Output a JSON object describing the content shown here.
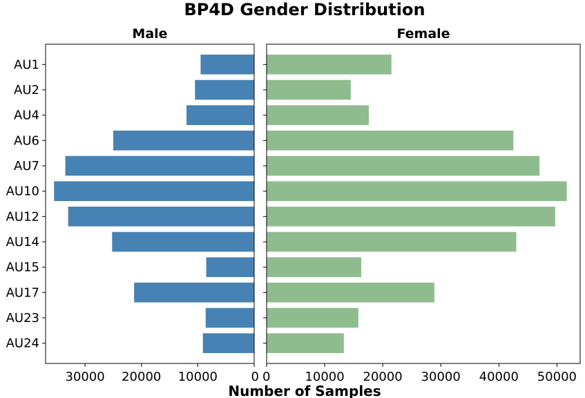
{
  "chart_data": {
    "type": "bar",
    "orientation": "horizontal",
    "title": "BP4D Gender Distribution",
    "xlabel": "Number of Samples",
    "categories": [
      "AU1",
      "AU2",
      "AU4",
      "AU6",
      "AU7",
      "AU10",
      "AU12",
      "AU14",
      "AU15",
      "AU17",
      "AU23",
      "AU24"
    ],
    "panels": [
      {
        "title": "Male",
        "color": "#4682b4",
        "inverted_x": true,
        "xlim": [
          0,
          37000
        ],
        "xticks": [
          0,
          10000,
          20000,
          30000
        ],
        "xtick_labels": [
          "0",
          "10000",
          "20000",
          "30000"
        ],
        "values": [
          9500,
          10500,
          12000,
          25000,
          33500,
          35500,
          33000,
          25200,
          8500,
          21300,
          8600,
          9100
        ]
      },
      {
        "title": "Female",
        "color": "#8fbc8f",
        "inverted_x": false,
        "xlim": [
          0,
          54000
        ],
        "xticks": [
          0,
          10000,
          20000,
          30000,
          40000,
          50000
        ],
        "xtick_labels": [
          "0",
          "10000",
          "20000",
          "30000",
          "40000",
          "50000"
        ],
        "values": [
          21500,
          14500,
          17600,
          42500,
          47000,
          51700,
          49700,
          43000,
          16300,
          28900,
          15800,
          13300
        ]
      }
    ]
  }
}
